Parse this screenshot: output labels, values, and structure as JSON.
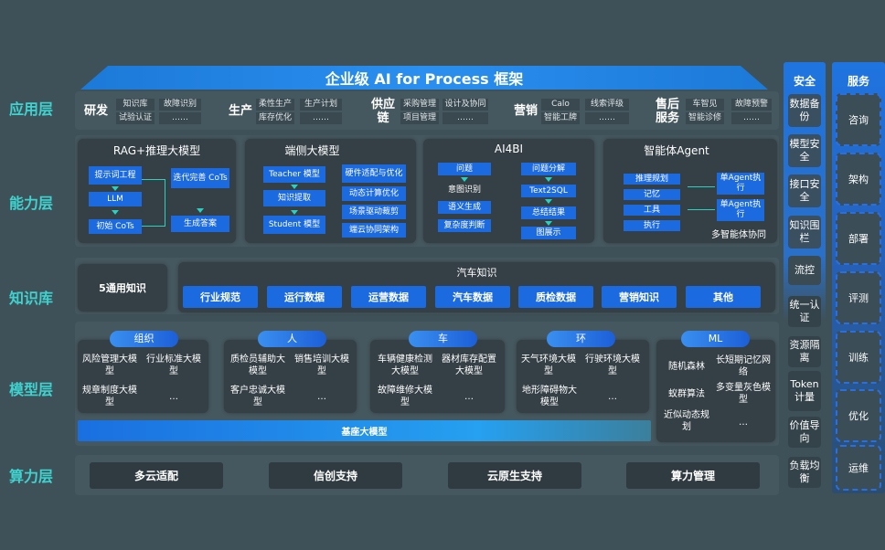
{
  "title": "企业级 AI for Process 框架",
  "layers": {
    "app": "应用层",
    "capability": "能力层",
    "knowledge": "知识库",
    "model": "模型层",
    "compute": "算力层"
  },
  "app": [
    {
      "name": "研发",
      "items": [
        "知识库",
        "试验认证",
        "故障识别",
        "……"
      ]
    },
    {
      "name": "生产",
      "items": [
        "柔性生产",
        "库存优化",
        "生产计划",
        "……"
      ]
    },
    {
      "name": "供应链",
      "items": [
        "采购管理",
        "项目管理",
        "设计及协同",
        "……"
      ]
    },
    {
      "name": "营销",
      "items": [
        "Calo",
        "智能工牌",
        "线索评级",
        "……"
      ]
    },
    {
      "name": "售后服务",
      "items": [
        "车智见",
        "智能诊修",
        "故障预警",
        "……"
      ]
    }
  ],
  "capability": {
    "rag": {
      "title": "RAG+推理大模型",
      "items": [
        "提示词工程",
        "LLM",
        "初始 CoTs",
        "迭代完善 CoTs",
        "生成答案"
      ]
    },
    "edge": {
      "title": "端侧大模型",
      "items": [
        "Teacher 模型",
        "知识提取",
        "Student 模型",
        "硬件适配与优化",
        "动态计算优化",
        "场景驱动裁剪",
        "端云协同架构"
      ]
    },
    "ai4bi": {
      "title": "AI4BI",
      "items": [
        "问题",
        "意图识别",
        "语义生成",
        "复杂度判断",
        "问题分解",
        "Text2SQL",
        "总结结果",
        "图展示"
      ]
    },
    "agent": {
      "title": "智能体Agent",
      "items": [
        "推理规划",
        "记忆",
        "工具",
        "执行",
        "单Agent执行",
        "单Agent执行"
      ],
      "footer": "多智能体协同"
    }
  },
  "knowledge": {
    "general": "5通用知识",
    "auto_title": "汽车知识",
    "auto_items": [
      "行业规范",
      "运行数据",
      "运营数据",
      "汽车数据",
      "质检数据",
      "营销知识",
      "其他"
    ]
  },
  "model": {
    "groups": [
      {
        "name": "组织",
        "items": [
          "风险管理大模型",
          "行业标准大模型",
          "规章制度大模型",
          "…"
        ]
      },
      {
        "name": "人",
        "items": [
          "质检员辅助大模型",
          "销售培训大模型",
          "客户忠诚大模型",
          "…"
        ]
      },
      {
        "name": "车",
        "items": [
          "车辆健康检测大模型",
          "器材库存配置大模型",
          "故障维修大模型",
          "…"
        ]
      },
      {
        "name": "环",
        "items": [
          "天气环境大模型",
          "行驶环境大模型",
          "地形障碍物大模型",
          "…"
        ]
      },
      {
        "name": "ML",
        "items": [
          "随机森林",
          "长短期记忆网络",
          "蚁群算法",
          "多变量灰色模型",
          "近似动态规划",
          "…"
        ]
      }
    ],
    "base": "基座大模型"
  },
  "compute": [
    "多云适配",
    "信创支持",
    "云原生支持",
    "算力管理"
  ],
  "security": {
    "title": "安全",
    "items": [
      "数据备份",
      "模型安全",
      "接口安全",
      "知识围栏",
      "流控",
      "统一认证",
      "资源隔离",
      "Token计量",
      "价值导向",
      "负载均衡"
    ]
  },
  "service": {
    "title": "服务",
    "items": [
      "咨询",
      "架构",
      "部署",
      "评测",
      "训练",
      "优化",
      "运维"
    ]
  }
}
